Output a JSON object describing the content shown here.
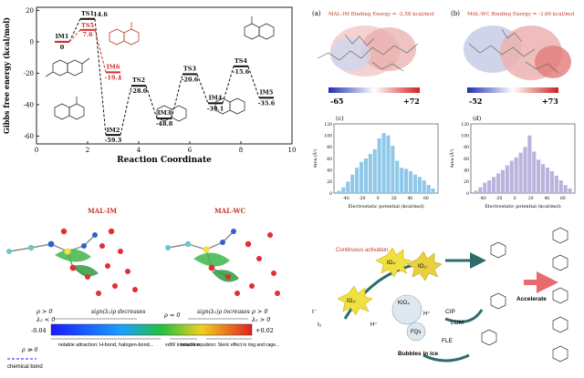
{
  "energy_chart": {
    "ylabel": "Gibbs free energy (kcal/mol)",
    "xlabel": "Reaction Coordinate",
    "x_ticks": [
      "0",
      "2",
      "4",
      "6",
      "8",
      "10"
    ],
    "y_ticks": [
      "20",
      "0",
      "-20",
      "-40",
      "-60"
    ],
    "labels": [
      {
        "name": "IM1",
        "value": "0"
      },
      {
        "name": "TS1",
        "value": "14.6"
      },
      {
        "name": "TS5",
        "value": "7.6"
      },
      {
        "name": "IM6",
        "value": "-19.4"
      },
      {
        "name": "IM2",
        "value": "-59.3"
      },
      {
        "name": "TS2",
        "value": "-28.0"
      },
      {
        "name": "IM3",
        "value": "-48.8"
      },
      {
        "name": "TS3",
        "value": "-20.6"
      },
      {
        "name": "IM4",
        "value": "-39.1"
      },
      {
        "name": "TS4",
        "value": "-15.6"
      },
      {
        "name": "IM5",
        "value": "-35.6"
      }
    ]
  },
  "chart_data": {
    "type": "line",
    "xlabel": "Reaction Coordinate",
    "ylabel": "Gibbs free energy (kcal/mol)",
    "xlim": [
      0,
      10
    ],
    "ylim": [
      -65,
      22
    ],
    "series": [
      {
        "points": [
          [
            1,
            0
          ],
          [
            2,
            14.6
          ],
          [
            3,
            -59.3
          ],
          [
            4,
            -28.0
          ],
          [
            5,
            -48.8
          ],
          [
            6,
            -20.6
          ],
          [
            7,
            -39.1
          ],
          [
            8,
            -15.6
          ],
          [
            9,
            -35.6
          ]
        ]
      },
      {
        "points": [
          [
            1,
            0
          ],
          [
            2,
            7.6
          ],
          [
            3,
            -19.4
          ]
        ]
      }
    ]
  },
  "esp": {
    "a_tag": "(a)",
    "a_title": "MAL-IM Binding Energy = -2.58 kcal/mol",
    "a_min": "-65",
    "a_max": "+72",
    "b_tag": "(b)",
    "b_title": "MAL-WC Binding Energy = -3.60 kcal/mol",
    "b_min": "-52",
    "b_max": "+73"
  },
  "hist_c": {
    "tag": "(c)",
    "ylabel": "Area (Å²)",
    "xlabel": "Electrostatic potential (kcal/mol)",
    "y_ticks": [
      "120",
      "100",
      "80",
      "60",
      "40",
      "20",
      "0"
    ],
    "x_ticks": [
      "-40",
      "-20",
      "0",
      "20",
      "40",
      "60"
    ],
    "bars": [
      4,
      10,
      20,
      32,
      44,
      54,
      60,
      68,
      76,
      95,
      104,
      100,
      82,
      56,
      44,
      42,
      38,
      32,
      28,
      22,
      14,
      8
    ]
  },
  "hist_d": {
    "tag": "(d)",
    "ylabel": "Area (Å²)",
    "xlabel": "Electrostatic potential (kcal/mol)",
    "y_ticks": [
      "120",
      "100",
      "80",
      "60",
      "40",
      "20",
      "0"
    ],
    "x_ticks": [
      "-40",
      "-20",
      "0",
      "20",
      "40",
      "60"
    ],
    "bars": [
      4,
      10,
      18,
      22,
      28,
      34,
      40,
      48,
      56,
      62,
      70,
      80,
      100,
      72,
      58,
      50,
      44,
      38,
      30,
      22,
      14,
      8
    ]
  },
  "igm": {
    "left_title": "MAL-IM",
    "right_title": "MAL-WC",
    "top_left": "ρ > 0",
    "top_left2": "λ₂ < 0",
    "top_mid_left": "sign(λ₂)ρ decreases",
    "top_mid": "ρ ≈ 0",
    "top_mid_right": "sign(λ₂)ρ increases",
    "top_right": "ρ > 0",
    "top_right2": "λ₂ > 0",
    "scale_min": "-0.04",
    "scale_max": "+0.02",
    "desc_attr": "notable attraction: H-bond, halogen-bond...",
    "desc_vdw": "vdW interaction",
    "desc_rep": "notable repulsion: Steric effect in ring and cage...",
    "bond_top": "ρ ≫ 0",
    "bond_label": "chemical bond"
  },
  "mechanism": {
    "continuous": "Continuous activation",
    "io4": "IO₄·",
    "io3": "IO₃·",
    "io3b": "IO₃·",
    "kio4": "KIO₄",
    "fqs": "FQs",
    "hplus": "H⁺",
    "hplus2": "H⁺",
    "i_minus": "I⁻",
    "i2": "I₂",
    "bubbles": "Bubbles in ice",
    "accelerate": "Accelerate",
    "cip": "CIP",
    "lom": "LOM",
    "fle": "FLE"
  }
}
